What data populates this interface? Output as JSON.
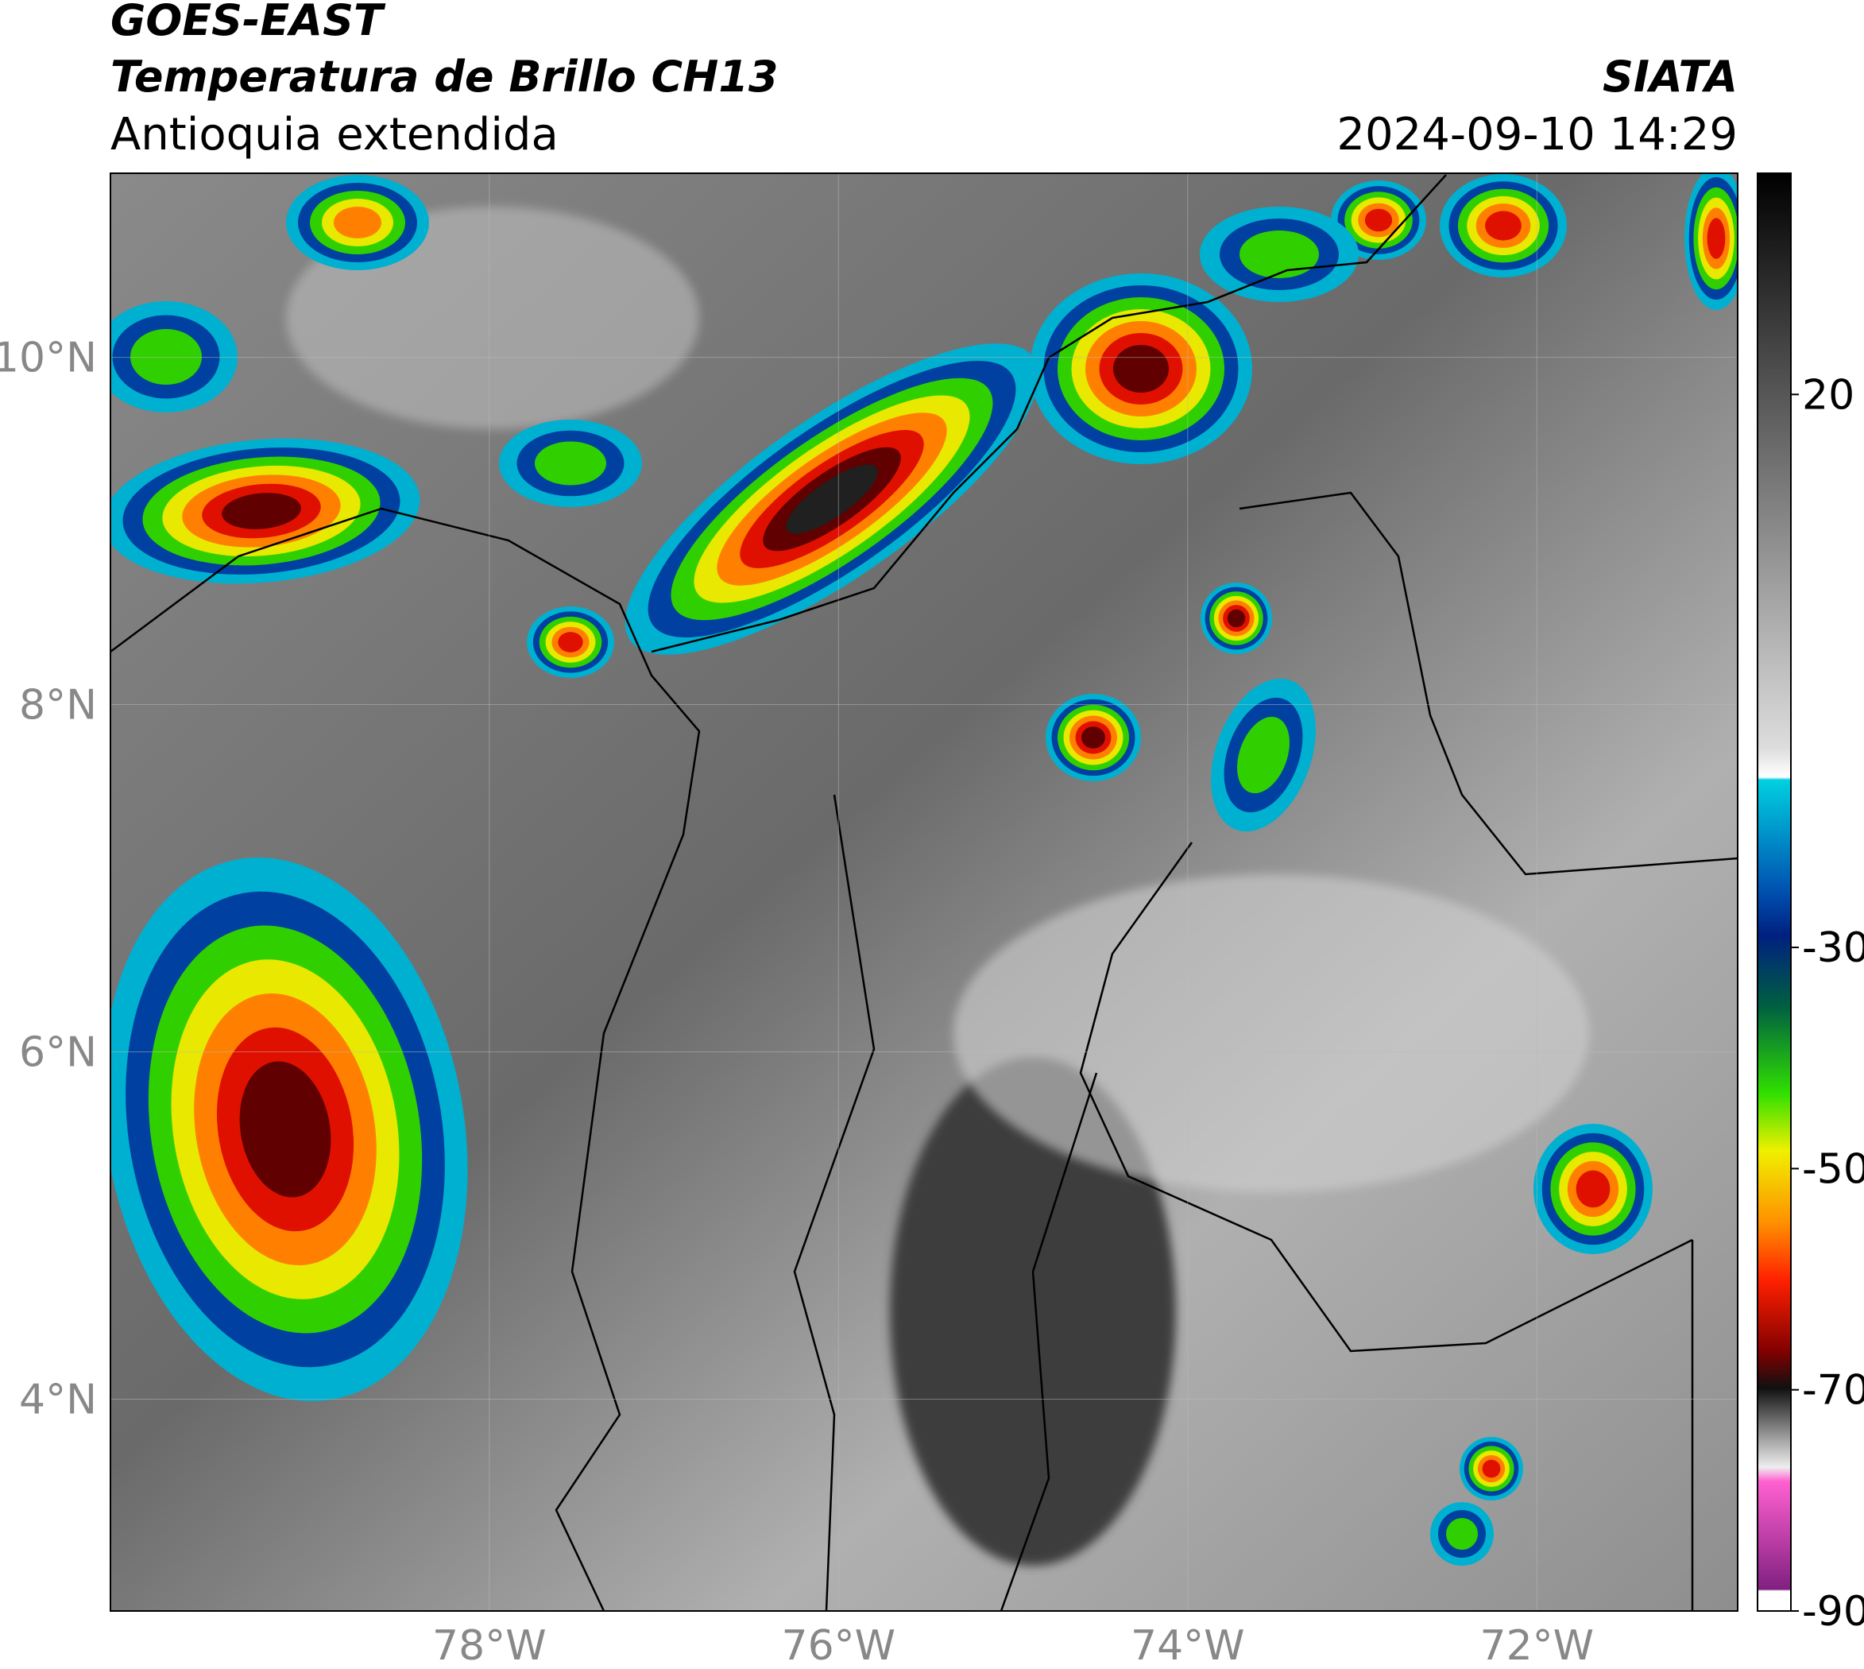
{
  "header": {
    "title": "GOES-EAST",
    "subtitle": "Temperatura de Brillo CH13",
    "region": "Antioquia extendida",
    "source": "SIATA",
    "datetime": "2024-09-10 14:29"
  },
  "map": {
    "xlim": [
      -80.17,
      -70.85
    ],
    "ylim": [
      2.78,
      11.06
    ],
    "xticks": [
      {
        "value": -78,
        "label": "78°W"
      },
      {
        "value": -76,
        "label": "76°W"
      },
      {
        "value": -74,
        "label": "74°W"
      },
      {
        "value": -72,
        "label": "72°W"
      }
    ],
    "yticks": [
      {
        "value": 10,
        "label": "10°N"
      },
      {
        "value": 8,
        "label": "8°N"
      },
      {
        "value": 6,
        "label": "6°N"
      },
      {
        "value": 4,
        "label": "4°N"
      }
    ]
  },
  "colorbar": {
    "lim": [
      -90,
      40
    ],
    "ticks": [
      20,
      -30,
      -50,
      -70,
      -90
    ]
  }
}
